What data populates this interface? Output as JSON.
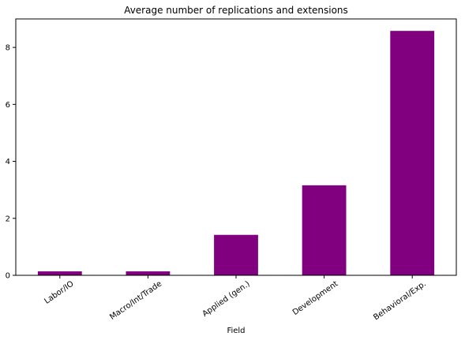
{
  "chart_data": {
    "type": "bar",
    "title": "Average number of replications and extensions",
    "xlabel": "Field",
    "ylabel": "",
    "categories": [
      "Labor/IO",
      "Macro/Int/Trade",
      "Applied (gen.)",
      "Development",
      "Behavioral/Exp."
    ],
    "values": [
      0.14,
      0.14,
      1.42,
      3.16,
      8.58
    ],
    "ylim": [
      0,
      9
    ],
    "yticks": [
      0,
      2,
      4,
      6,
      8
    ],
    "grid": false,
    "legend": "none",
    "bar_color": "#800080"
  }
}
